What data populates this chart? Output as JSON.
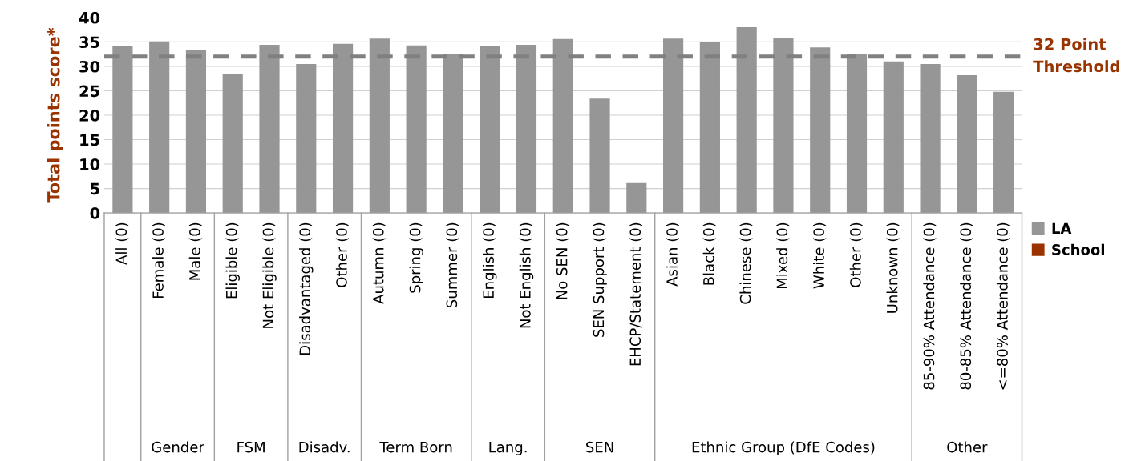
{
  "chart_data": {
    "type": "bar",
    "ylabel": "Total points score*",
    "categories": [
      "All (0)",
      "Female (0)",
      "Male (0)",
      "Eligible (0)",
      "Not Eligible (0)",
      "Disadvantaged (0)",
      "Other (0)",
      "Autumn (0)",
      "Spring (0)",
      "Summer (0)",
      "English (0)",
      "Not English (0)",
      "No SEN (0)",
      "SEN Support (0)",
      "EHCP/Statement (0)",
      "Asian (0)",
      "Black (0)",
      "Chinese (0)",
      "Mixed (0)",
      "White (0)",
      "Other (0)",
      "Unknown (0)",
      "85-90% Attendance (0)",
      "80-85% Attendance (0)",
      "<=80% Attendance (0)"
    ],
    "series": [
      {
        "name": "LA",
        "color": "#969696",
        "values": [
          34.1,
          35.1,
          33.3,
          28.4,
          34.4,
          30.5,
          34.6,
          35.7,
          34.3,
          32.5,
          34.1,
          34.4,
          35.6,
          23.4,
          6.1,
          35.7,
          34.9,
          38.0,
          35.9,
          33.9,
          32.6,
          31.0,
          30.5,
          28.2,
          24.8
        ]
      },
      {
        "name": "School",
        "color": "#993300",
        "values": [
          null,
          null,
          null,
          null,
          null,
          null,
          null,
          null,
          null,
          null,
          null,
          null,
          null,
          null,
          null,
          null,
          null,
          null,
          null,
          null,
          null,
          null,
          null,
          null,
          null
        ]
      }
    ],
    "ylim": [
      0,
      40
    ],
    "yticks": [
      0,
      5,
      10,
      15,
      20,
      25,
      30,
      35,
      40
    ],
    "grid": "y",
    "legend": "right",
    "ref_lines": [
      {
        "axis": "y",
        "value": 32,
        "label": "32 Point Threshold",
        "color": "#808080",
        "line_style": "dashed"
      }
    ],
    "annotations": [
      "Gender",
      "FSM",
      "Disadv.",
      "Term Born",
      "Lang.",
      "SEN",
      "Ethnic Group (DfE Codes)",
      "Other"
    ]
  }
}
